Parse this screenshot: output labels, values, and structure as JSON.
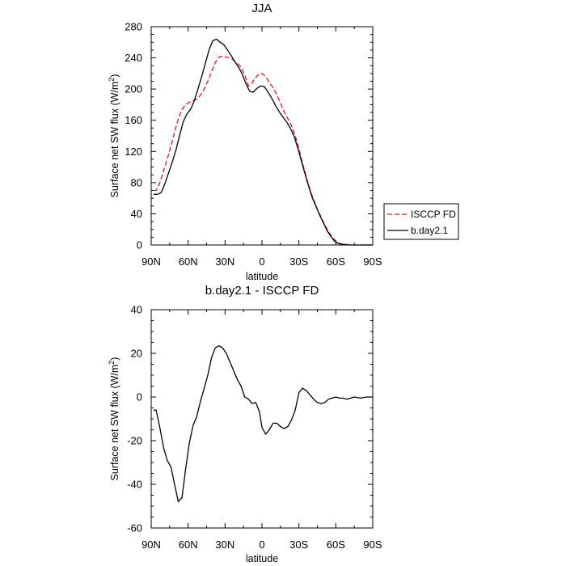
{
  "chart_data": [
    {
      "type": "line",
      "title": "JJA",
      "xlabel": "latitude",
      "ylabel": "Surface net SW flux (W/m²)",
      "ylabel_main": "Surface net SW flux (W/m",
      "ylabel_sup": "2",
      "ylabel_end": ")",
      "xlim": [
        90,
        -90
      ],
      "ylim": [
        0,
        280
      ],
      "xticks": [
        90,
        60,
        30,
        0,
        -30,
        -60,
        -90
      ],
      "xtick_labels": [
        "90N",
        "60N",
        "30N",
        "0",
        "30S",
        "60S",
        "90S"
      ],
      "yticks": [
        0,
        40,
        80,
        120,
        160,
        200,
        240,
        280
      ],
      "ytick_labels": [
        "0",
        "40",
        "80",
        "120",
        "160",
        "200",
        "240",
        "280"
      ],
      "legend": {
        "position": "right",
        "entries": [
          "ISCCP FD",
          "b.day2.1"
        ]
      },
      "series": [
        {
          "name": "ISCCP FD",
          "color": "#e8141b",
          "dash": "dashed",
          "x": [
            88,
            86,
            83,
            80,
            77,
            74,
            71,
            68,
            65,
            62,
            59,
            56,
            53,
            50,
            47,
            44,
            41,
            38,
            35,
            32,
            29,
            26,
            23,
            20,
            17,
            14,
            11,
            8,
            5,
            2,
            0,
            -3,
            -6,
            -9,
            -12,
            -15,
            -18,
            -21,
            -24,
            -27,
            -30,
            -33,
            -36,
            -39,
            -42,
            -45,
            -48,
            -51,
            -54,
            -57,
            -60,
            -63,
            -66,
            -69,
            -72,
            -75,
            -80,
            -85,
            -90
          ],
          "y": [
            70,
            70,
            80,
            95,
            110,
            127,
            145,
            162,
            174,
            180,
            183,
            185,
            187,
            192,
            200,
            210,
            222,
            234,
            241,
            242,
            241,
            240,
            237,
            233,
            228,
            218,
            204,
            208,
            215,
            220,
            220,
            216,
            208,
            202,
            193,
            182,
            171,
            162,
            153,
            140,
            123,
            105,
            87,
            71,
            58,
            46,
            36,
            26,
            17,
            10,
            5,
            2,
            1,
            0.5,
            0,
            0,
            0,
            0,
            0
          ]
        },
        {
          "name": "b.day2.1",
          "color": "#000000",
          "dash": "solid",
          "x": [
            88,
            85,
            82,
            79,
            76,
            73,
            70,
            67,
            64,
            61,
            58,
            55,
            52,
            49,
            46,
            43,
            40,
            37,
            34,
            31,
            28,
            25,
            22,
            19,
            16,
            13,
            10,
            7,
            4,
            1,
            -2,
            -5,
            -8,
            -11,
            -14,
            -17,
            -20,
            -23,
            -26,
            -29,
            -32,
            -35,
            -38,
            -41,
            -44,
            -47,
            -50,
            -53,
            -56,
            -59,
            -62,
            -65,
            -68,
            -71,
            -74,
            -80,
            -85,
            -90
          ],
          "y": [
            65,
            65,
            67,
            78,
            92,
            106,
            121,
            140,
            158,
            168,
            174,
            185,
            200,
            216,
            233,
            250,
            262,
            264,
            260,
            257,
            250,
            243,
            235,
            228,
            219,
            207,
            197,
            196,
            201,
            204,
            203,
            196,
            188,
            179,
            171,
            164,
            158,
            150,
            140,
            125,
            108,
            91,
            75,
            60,
            49,
            38,
            28,
            18,
            11,
            5,
            2,
            1,
            0.5,
            0,
            0,
            0,
            0,
            0
          ]
        }
      ]
    },
    {
      "type": "line",
      "title": "b.day2.1 - ISCCP FD",
      "xlabel": "latitude",
      "ylabel": "Surface net SW flux (W/m²)",
      "ylabel_main": "Surface net SW flux (W/m",
      "ylabel_sup": "2",
      "ylabel_end": ")",
      "xlim": [
        90,
        -90
      ],
      "ylim": [
        -60,
        40
      ],
      "xticks": [
        90,
        60,
        30,
        0,
        -30,
        -60,
        -90
      ],
      "xtick_labels": [
        "90N",
        "60N",
        "30N",
        "0",
        "30S",
        "60S",
        "90S"
      ],
      "yticks": [
        -60,
        -40,
        -20,
        0,
        20,
        40
      ],
      "ytick_labels": [
        "-60",
        "-40",
        "-20",
        "0",
        "20",
        "40"
      ],
      "series": [
        {
          "name": "b.day2.1 - ISCCP FD",
          "color": "#000000",
          "dash": "solid",
          "x": [
            88,
            86,
            83,
            80,
            77,
            74,
            71,
            68,
            65,
            62,
            59,
            56,
            53,
            50,
            47,
            44,
            41,
            38,
            35,
            32,
            29,
            26,
            23,
            20,
            17,
            14,
            11,
            8,
            5,
            2,
            0,
            -3,
            -6,
            -9,
            -12,
            -15,
            -18,
            -21,
            -24,
            -27,
            -30,
            -33,
            -36,
            -39,
            -42,
            -45,
            -48,
            -51,
            -54,
            -57,
            -60,
            -63,
            -66,
            -69,
            -72,
            -75,
            -80,
            -85,
            -90
          ],
          "y": [
            -6,
            -6,
            -14,
            -23,
            -29,
            -32,
            -40,
            -48,
            -46,
            -33,
            -21,
            -13,
            -9,
            -2,
            4,
            10,
            18,
            22.5,
            23.5,
            22.5,
            20,
            16,
            12,
            8,
            5,
            0,
            -1,
            -3,
            -2.5,
            -7,
            -14,
            -17,
            -15,
            -12,
            -12,
            -13.5,
            -14.5,
            -13.5,
            -10.5,
            -6,
            2,
            4,
            3,
            1,
            -1,
            -2.5,
            -3,
            -2.5,
            -1,
            -0.5,
            0,
            -0.5,
            -0.5,
            -1,
            -0.5,
            0,
            -0.5,
            0,
            0
          ]
        }
      ]
    }
  ]
}
